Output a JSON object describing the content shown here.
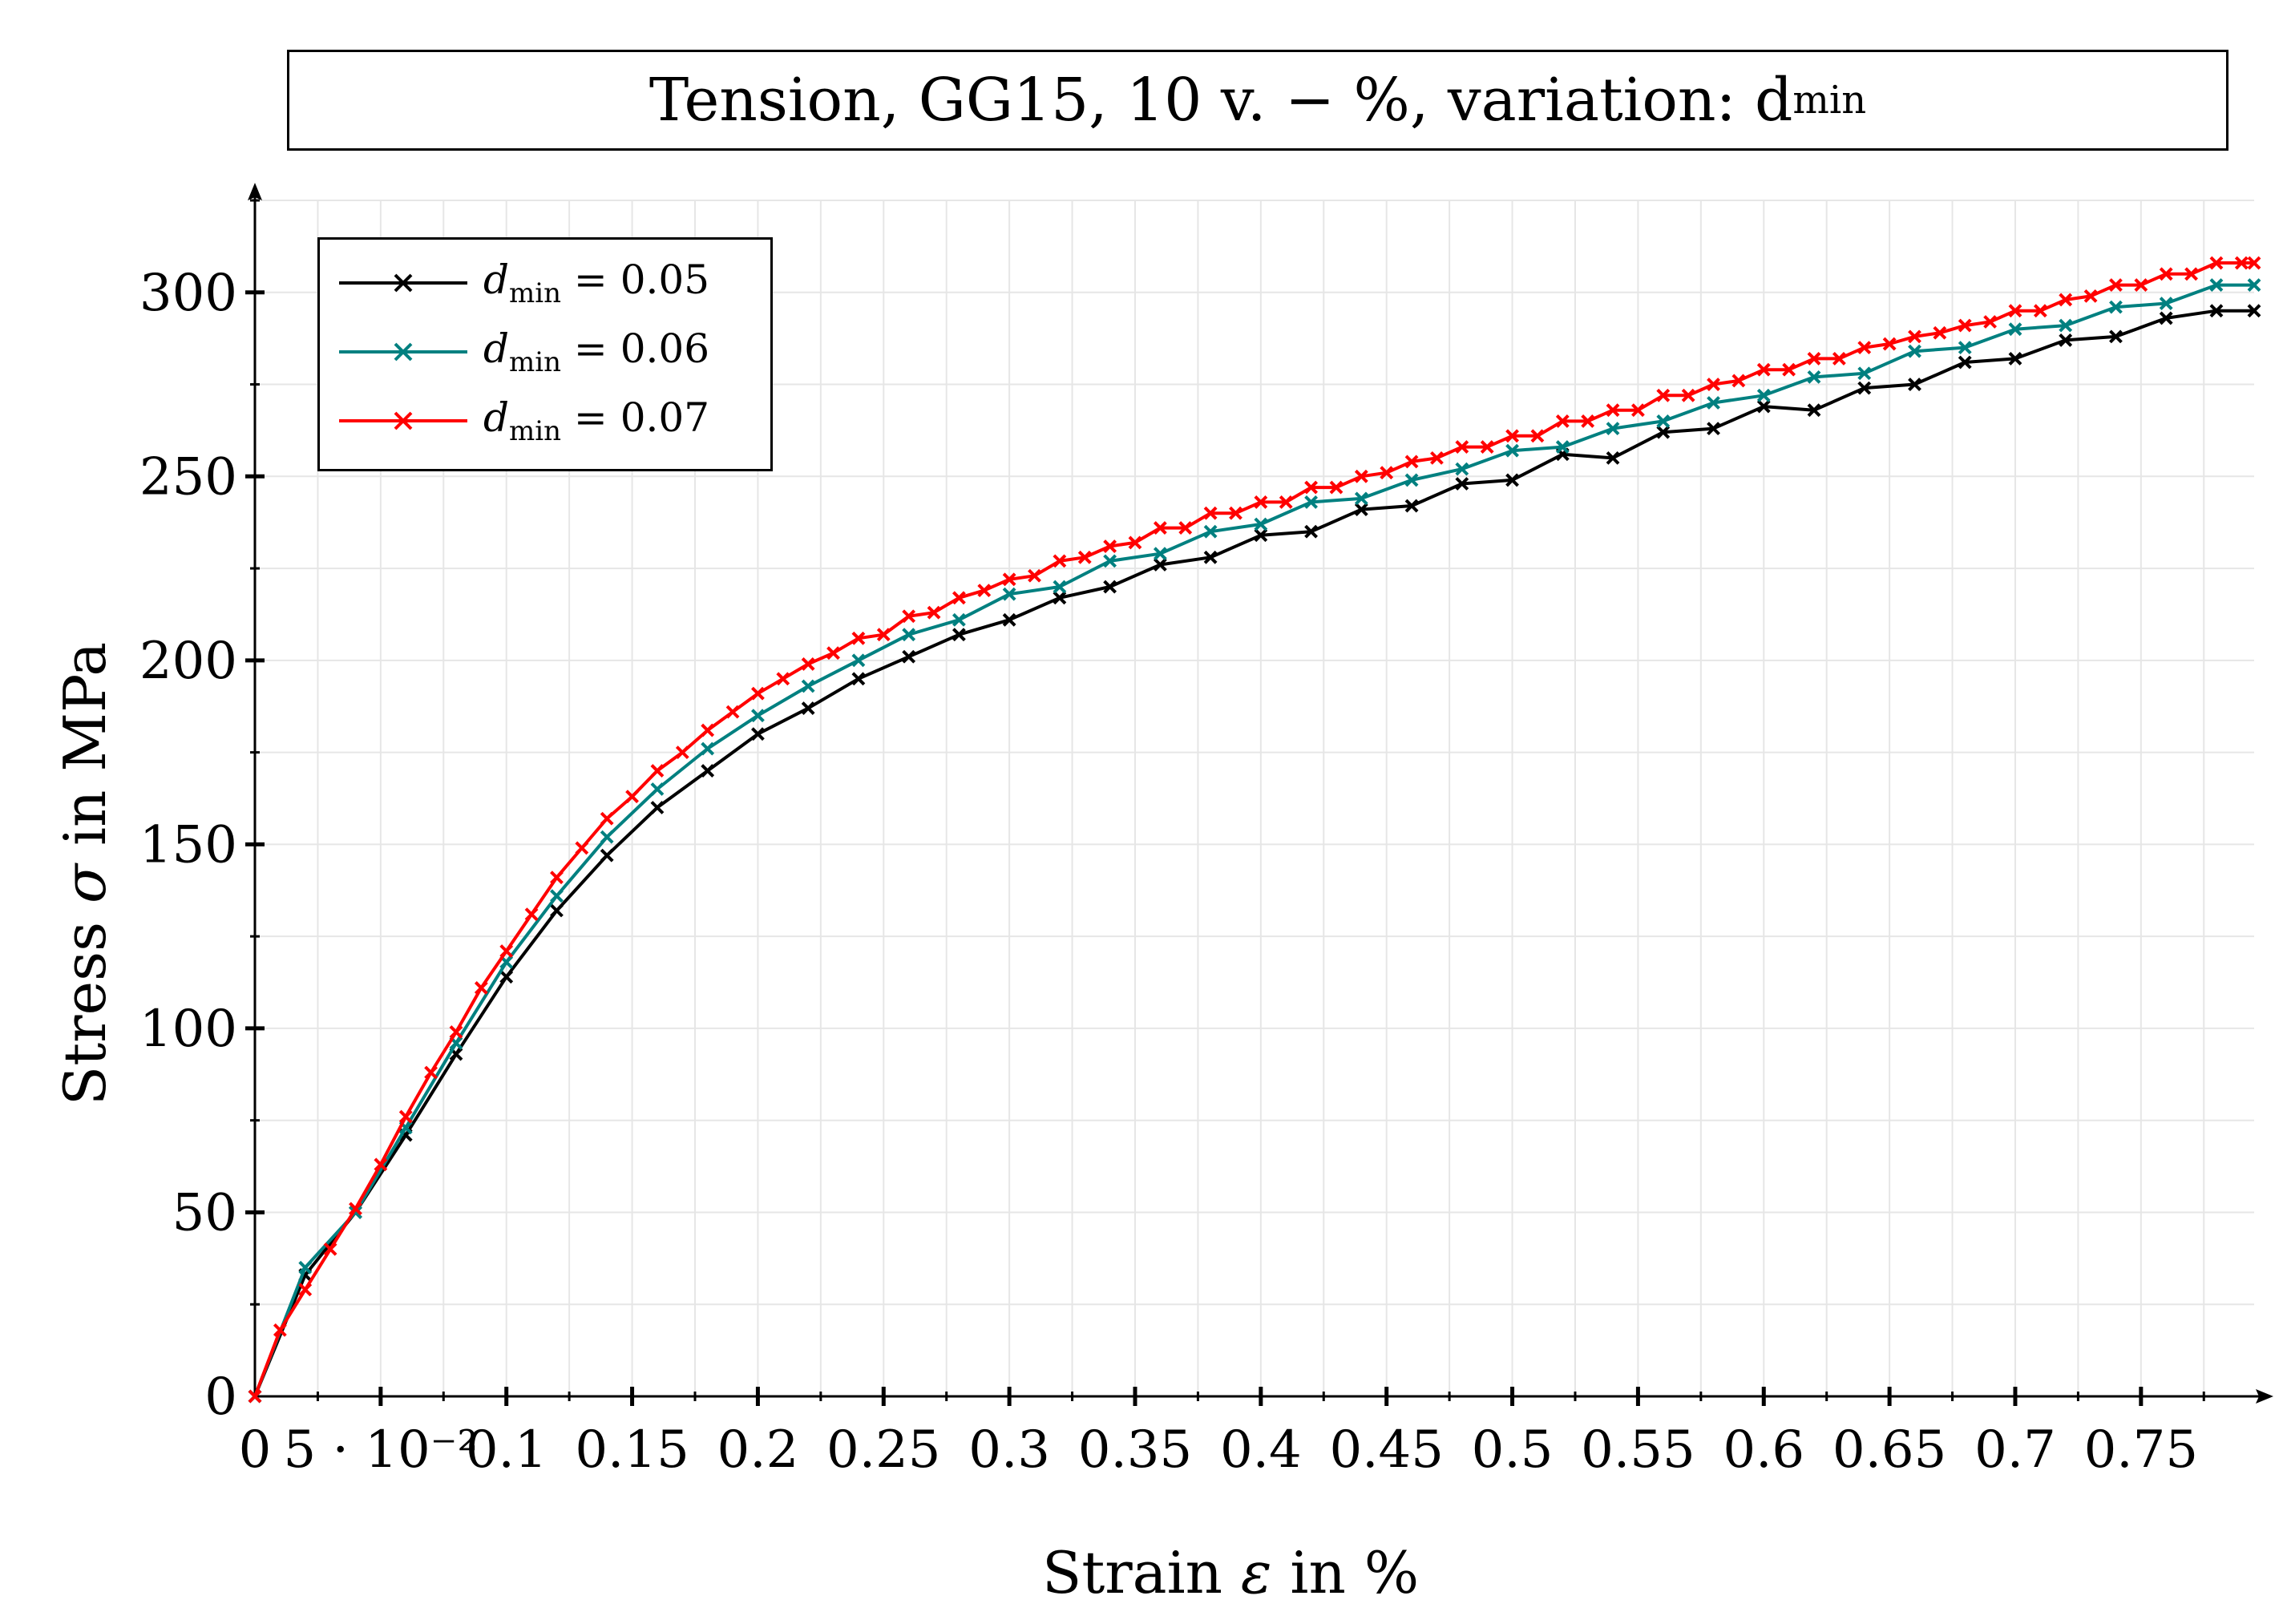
{
  "chart_data": {
    "type": "line",
    "title": "Tension, GG15, 10 v. − %, variation: d",
    "title_subscript": "min",
    "xlabel_text": "Strain ",
    "xlabel_symbol": "ε",
    "xlabel_unit": " in %",
    "ylabel_text": "Stress ",
    "ylabel_symbol": "σ",
    "ylabel_unit": " in MPa",
    "xlim": [
      0,
      0.795
    ],
    "ylim": [
      0,
      325
    ],
    "grid": true,
    "legend_position": "top-left",
    "x_ticks": [
      0,
      0.05,
      0.1,
      0.15,
      0.2,
      0.25,
      0.3,
      0.35,
      0.4,
      0.45,
      0.5,
      0.55,
      0.6,
      0.65,
      0.7,
      0.75
    ],
    "x_tick_labels": [
      "0",
      "5 · 10⁻²",
      "0.1",
      "0.15",
      "0.2",
      "0.25",
      "0.3",
      "0.35",
      "0.4",
      "0.45",
      "0.5",
      "0.55",
      "0.6",
      "0.65",
      "0.7",
      "0.75"
    ],
    "y_ticks": [
      0,
      50,
      100,
      150,
      200,
      250,
      300
    ],
    "y_tick_labels": [
      "0",
      "50",
      "100",
      "150",
      "200",
      "250",
      "300"
    ],
    "legend_symbol": "d",
    "legend_subscript": "min",
    "series": [
      {
        "name": "d_min = 0.05",
        "legend_value": " = 0.05",
        "color": "#000000",
        "x": [
          0,
          0.02,
          0.04,
          0.06,
          0.08,
          0.1,
          0.12,
          0.14,
          0.16,
          0.18,
          0.2,
          0.22,
          0.24,
          0.26,
          0.28,
          0.3,
          0.32,
          0.34,
          0.36,
          0.38,
          0.4,
          0.42,
          0.44,
          0.46,
          0.48,
          0.5,
          0.52,
          0.54,
          0.56,
          0.58,
          0.6,
          0.62,
          0.64,
          0.66,
          0.68,
          0.7,
          0.72,
          0.74,
          0.76,
          0.78,
          0.795
        ],
        "values": [
          0,
          33,
          50,
          71,
          93,
          114,
          132,
          147,
          160,
          170,
          180,
          187,
          195,
          201,
          207,
          211,
          217,
          220,
          226,
          228,
          234,
          235,
          241,
          242,
          248,
          249,
          256,
          255,
          262,
          263,
          269,
          268,
          274,
          275,
          281,
          282,
          287,
          288,
          293,
          295,
          295
        ]
      },
      {
        "name": "d_min = 0.06",
        "legend_value": " = 0.06",
        "color": "#008080",
        "x": [
          0,
          0.02,
          0.04,
          0.06,
          0.08,
          0.1,
          0.12,
          0.14,
          0.16,
          0.18,
          0.2,
          0.22,
          0.24,
          0.26,
          0.28,
          0.3,
          0.32,
          0.34,
          0.36,
          0.38,
          0.4,
          0.42,
          0.44,
          0.46,
          0.48,
          0.5,
          0.52,
          0.54,
          0.56,
          0.58,
          0.6,
          0.62,
          0.64,
          0.66,
          0.68,
          0.7,
          0.72,
          0.74,
          0.76,
          0.78,
          0.795
        ],
        "values": [
          0,
          35,
          50,
          73,
          96,
          118,
          136,
          152,
          165,
          176,
          185,
          193,
          200,
          207,
          211,
          218,
          220,
          227,
          229,
          235,
          237,
          243,
          244,
          249,
          252,
          257,
          258,
          263,
          265,
          270,
          272,
          277,
          278,
          284,
          285,
          290,
          291,
          296,
          297,
          302,
          302
        ]
      },
      {
        "name": "d_min = 0.07",
        "legend_value": " = 0.07",
        "color": "#ff0000",
        "x": [
          0,
          0.01,
          0.02,
          0.03,
          0.04,
          0.05,
          0.06,
          0.07,
          0.08,
          0.09,
          0.1,
          0.11,
          0.12,
          0.13,
          0.14,
          0.15,
          0.16,
          0.17,
          0.18,
          0.19,
          0.2,
          0.21,
          0.22,
          0.23,
          0.24,
          0.25,
          0.26,
          0.27,
          0.28,
          0.29,
          0.3,
          0.31,
          0.32,
          0.33,
          0.34,
          0.35,
          0.36,
          0.37,
          0.38,
          0.39,
          0.4,
          0.41,
          0.42,
          0.43,
          0.44,
          0.45,
          0.46,
          0.47,
          0.48,
          0.49,
          0.5,
          0.51,
          0.52,
          0.53,
          0.54,
          0.55,
          0.56,
          0.57,
          0.58,
          0.59,
          0.6,
          0.61,
          0.62,
          0.63,
          0.64,
          0.65,
          0.66,
          0.67,
          0.68,
          0.69,
          0.7,
          0.71,
          0.72,
          0.73,
          0.74,
          0.75,
          0.76,
          0.77,
          0.78,
          0.79,
          0.795
        ],
        "values": [
          0,
          18,
          29,
          40,
          51,
          63,
          76,
          88,
          99,
          111,
          121,
          131,
          141,
          149,
          157,
          163,
          170,
          175,
          181,
          186,
          191,
          195,
          199,
          202,
          206,
          207,
          212,
          213,
          217,
          219,
          222,
          223,
          227,
          228,
          231,
          232,
          236,
          236,
          240,
          240,
          243,
          243,
          247,
          247,
          250,
          251,
          254,
          255,
          258,
          258,
          261,
          261,
          265,
          265,
          268,
          268,
          272,
          272,
          275,
          276,
          279,
          279,
          282,
          282,
          285,
          286,
          288,
          289,
          291,
          292,
          295,
          295,
          298,
          299,
          302,
          302,
          305,
          305,
          308,
          308,
          308
        ]
      }
    ]
  }
}
